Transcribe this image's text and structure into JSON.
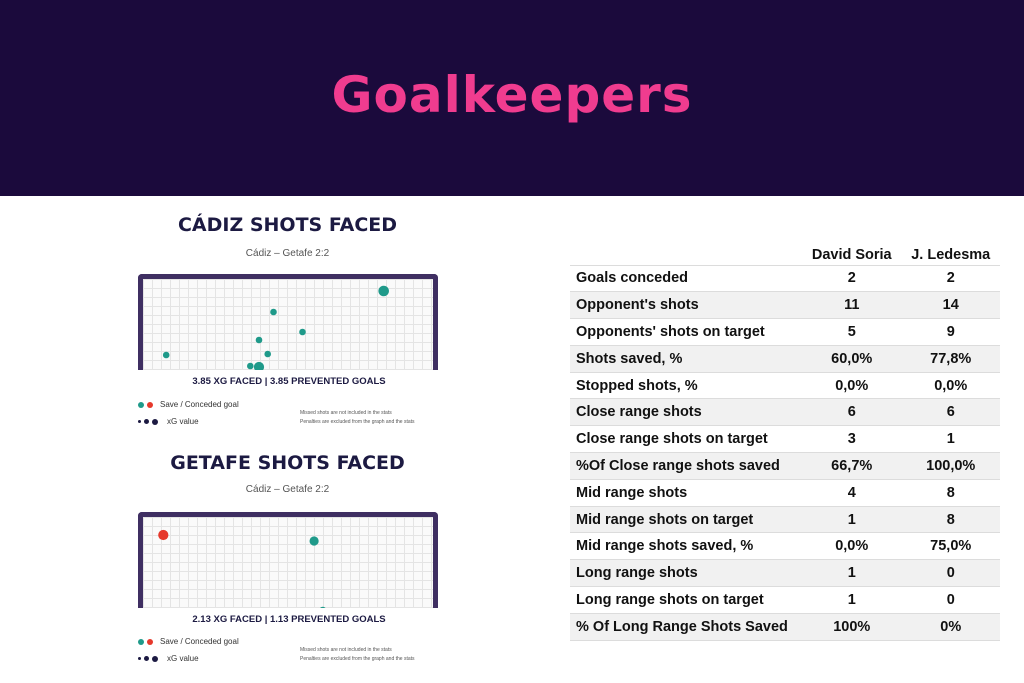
{
  "banner": {
    "title": "Goalkeepers"
  },
  "chart_data": [
    {
      "type": "scatter",
      "title": "CÁDIZ SHOTS FACED",
      "subtitle": "Cádiz – Getafe 2:2",
      "summary": "3.85 XG FACED | 3.85 PREVENTED GOALS",
      "legend": {
        "save_conceded": "Save / Conceded goal",
        "xg_value": "xG value"
      },
      "notes": [
        "Missed shots are not included in the stats",
        "Penalties are excluded from the graph and the stats"
      ],
      "points": [
        {
          "x": 0.83,
          "y": 0.12,
          "xg": 0.14,
          "outcome": "save"
        },
        {
          "x": 0.45,
          "y": 0.33,
          "xg": 0.03,
          "outcome": "save"
        },
        {
          "x": 0.55,
          "y": 0.53,
          "xg": 0.03,
          "outcome": "save"
        },
        {
          "x": 0.4,
          "y": 0.61,
          "xg": 0.03,
          "outcome": "save"
        },
        {
          "x": 0.43,
          "y": 0.75,
          "xg": 0.03,
          "outcome": "save"
        },
        {
          "x": 0.08,
          "y": 0.76,
          "xg": 0.03,
          "outcome": "save"
        },
        {
          "x": 0.37,
          "y": 0.87,
          "xg": 0.03,
          "outcome": "save"
        },
        {
          "x": 0.4,
          "y": 0.88,
          "xg": 0.12,
          "outcome": "save"
        }
      ],
      "colors": {
        "save": "#1f9a8a",
        "conceded": "#e6382b"
      }
    },
    {
      "type": "scatter",
      "title": "GETAFE SHOTS FACED",
      "subtitle": "Cádiz – Getafe 2:2",
      "summary": "2.13 XG FACED | 1.13 PREVENTED GOALS",
      "legend": {
        "save_conceded": "Save / Conceded goal",
        "xg_value": "xG value"
      },
      "notes": [
        "Missed shots are not included in the stats",
        "Penalties are excluded from the graph and the stats"
      ],
      "points": [
        {
          "x": 0.07,
          "y": 0.18,
          "xg": 0.12,
          "outcome": "conceded"
        },
        {
          "x": 0.59,
          "y": 0.24,
          "xg": 0.09,
          "outcome": "save"
        },
        {
          "x": 0.62,
          "y": 0.93,
          "xg": 0.03,
          "outcome": "save"
        }
      ],
      "colors": {
        "save": "#1f9a8a",
        "conceded": "#e6382b"
      }
    }
  ],
  "table": {
    "columns": [
      "",
      "David Soria",
      "J. Ledesma"
    ],
    "rows": [
      [
        "Goals conceded",
        "2",
        "2"
      ],
      [
        "Opponent's shots",
        "11",
        "14"
      ],
      [
        "Opponents' shots  on target",
        "5",
        "9"
      ],
      [
        "Shots saved, %",
        "60,0%",
        "77,8%"
      ],
      [
        "Stopped shots, %",
        "0,0%",
        "0,0%"
      ],
      [
        "Close range shots",
        "6",
        "6"
      ],
      [
        "Close range shots on target",
        "3",
        "1"
      ],
      [
        "%Of Close range shots saved",
        "66,7%",
        "100,0%"
      ],
      [
        "Mid range shots",
        "4",
        "8"
      ],
      [
        "Mid range shots on target",
        "1",
        "8"
      ],
      [
        "Mid range shots saved, %",
        "0,0%",
        "75,0%"
      ],
      [
        "Long range shots",
        "1",
        "0"
      ],
      [
        "Long range shots on target",
        "1",
        "0"
      ],
      [
        "% Of Long Range Shots Saved",
        "100%",
        "0%"
      ]
    ]
  }
}
